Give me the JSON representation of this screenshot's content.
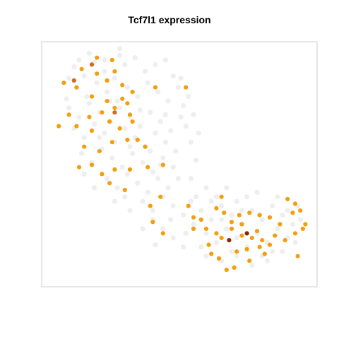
{
  "chart_data": {
    "type": "scatter",
    "title": "Tcf7l1 expression",
    "xlabel": "",
    "ylabel": "",
    "xlim": [
      0,
      100
    ],
    "ylim": [
      0,
      100
    ],
    "grid": false,
    "legend": "none",
    "colors": {
      "background_cells": "#eeeeee",
      "frame": "#cccccc",
      "low": "#f59e0b",
      "medium": "#d2691e",
      "high": "#8b2500"
    },
    "series": [
      {
        "level": "background",
        "points": [
          [
            8,
            93
          ],
          [
            12,
            89
          ],
          [
            16,
            95
          ],
          [
            20,
            91
          ],
          [
            24,
            88
          ],
          [
            28,
            94
          ],
          [
            9,
            84
          ],
          [
            13,
            80
          ],
          [
            17,
            86
          ],
          [
            21,
            82
          ],
          [
            25,
            78
          ],
          [
            29,
            84
          ],
          [
            33,
            80
          ],
          [
            37,
            86
          ],
          [
            41,
            82
          ],
          [
            45,
            78
          ],
          [
            49,
            84
          ],
          [
            53,
            80
          ],
          [
            51,
            76
          ],
          [
            55,
            72
          ],
          [
            6,
            75
          ],
          [
            10,
            71
          ],
          [
            14,
            77
          ],
          [
            18,
            73
          ],
          [
            22,
            69
          ],
          [
            26,
            75
          ],
          [
            30,
            71
          ],
          [
            34,
            67
          ],
          [
            38,
            73
          ],
          [
            42,
            69
          ],
          [
            46,
            65
          ],
          [
            50,
            71
          ],
          [
            52,
            67
          ],
          [
            8,
            66
          ],
          [
            12,
            62
          ],
          [
            16,
            68
          ],
          [
            20,
            64
          ],
          [
            24,
            60
          ],
          [
            28,
            66
          ],
          [
            32,
            62
          ],
          [
            36,
            58
          ],
          [
            40,
            64
          ],
          [
            44,
            60
          ],
          [
            48,
            56
          ],
          [
            11,
            55
          ],
          [
            15,
            51
          ],
          [
            19,
            57
          ],
          [
            23,
            53
          ],
          [
            27,
            49
          ],
          [
            31,
            55
          ],
          [
            35,
            51
          ],
          [
            39,
            47
          ],
          [
            43,
            53
          ],
          [
            47,
            49
          ],
          [
            21,
            44
          ],
          [
            25,
            40
          ],
          [
            29,
            46
          ],
          [
            33,
            42
          ],
          [
            37,
            38
          ],
          [
            41,
            44
          ],
          [
            45,
            40
          ],
          [
            35,
            34
          ],
          [
            39,
            30
          ],
          [
            43,
            36
          ],
          [
            47,
            32
          ],
          [
            51,
            28
          ],
          [
            39,
            26
          ],
          [
            43,
            22
          ],
          [
            47,
            18
          ],
          [
            51,
            14
          ],
          [
            55,
            24
          ],
          [
            35,
            22
          ],
          [
            40,
            15
          ],
          [
            58,
            30
          ],
          [
            62,
            26
          ],
          [
            66,
            32
          ],
          [
            70,
            28
          ],
          [
            74,
            24
          ],
          [
            78,
            30
          ],
          [
            82,
            26
          ],
          [
            86,
            32
          ],
          [
            90,
            28
          ],
          [
            94,
            24
          ],
          [
            60,
            20
          ],
          [
            64,
            16
          ],
          [
            68,
            22
          ],
          [
            72,
            18
          ],
          [
            76,
            14
          ],
          [
            80,
            20
          ],
          [
            84,
            16
          ],
          [
            88,
            22
          ],
          [
            92,
            18
          ],
          [
            56,
            36
          ],
          [
            60,
            40
          ],
          [
            64,
            36
          ],
          [
            68,
            40
          ],
          [
            72,
            34
          ],
          [
            80,
            38
          ],
          [
            88,
            36
          ],
          [
            96,
            32
          ],
          [
            60,
            10
          ],
          [
            66,
            8
          ],
          [
            72,
            10
          ],
          [
            78,
            6
          ],
          [
            84,
            8
          ],
          [
            14,
            99
          ],
          [
            26,
            101
          ],
          [
            32,
            97
          ],
          [
            47,
            89
          ],
          [
            36,
            91
          ],
          [
            54,
            60
          ],
          [
            57,
            64
          ],
          [
            5,
            79
          ],
          [
            18,
            62
          ],
          [
            30,
            58
          ],
          [
            42,
            50
          ],
          [
            49,
            44
          ],
          [
            24,
            34
          ],
          [
            30,
            30
          ],
          [
            54,
            44
          ],
          [
            56,
            52
          ],
          [
            6,
            88
          ],
          [
            40,
            94
          ],
          [
            44,
            96
          ],
          [
            34,
            74
          ],
          [
            22,
            78
          ],
          [
            12,
            46
          ],
          [
            16,
            40
          ],
          [
            28,
            36
          ],
          [
            46,
            26
          ],
          [
            52,
            20
          ],
          [
            58,
            14
          ],
          [
            62,
            34
          ],
          [
            70,
            12
          ],
          [
            76,
            36
          ],
          [
            82,
            10
          ],
          [
            86,
            12
          ],
          [
            92,
            30
          ],
          [
            95,
            16
          ],
          [
            97,
            26
          ],
          [
            54,
            34
          ],
          [
            66,
            26
          ],
          [
            74,
            30
          ],
          [
            90,
            12
          ],
          [
            38,
            56
          ],
          [
            44,
            72
          ],
          [
            50,
            88
          ],
          [
            26,
            98
          ],
          [
            20,
            96
          ],
          [
            10,
            96
          ]
        ]
      },
      {
        "level": "low",
        "points": [
          [
            17,
            97
          ],
          [
            23,
            96
          ],
          [
            11,
            92
          ],
          [
            17,
            90
          ],
          [
            24,
            91
          ],
          [
            27,
            85
          ],
          [
            21,
            87
          ],
          [
            4,
            86
          ],
          [
            9,
            84
          ],
          [
            15,
            80
          ],
          [
            21,
            78
          ],
          [
            27,
            79
          ],
          [
            31,
            82
          ],
          [
            40,
            84
          ],
          [
            52,
            84
          ],
          [
            6,
            72
          ],
          [
            14,
            71
          ],
          [
            19,
            73
          ],
          [
            24,
            75
          ],
          [
            29,
            77
          ],
          [
            30,
            72
          ],
          [
            2,
            67
          ],
          [
            9,
            67
          ],
          [
            15,
            65
          ],
          [
            22,
            69
          ],
          [
            26,
            66
          ],
          [
            31,
            69
          ],
          [
            12,
            58
          ],
          [
            18,
            56
          ],
          [
            23,
            60
          ],
          [
            29,
            61
          ],
          [
            33,
            61
          ],
          [
            36,
            58
          ],
          [
            10,
            49
          ],
          [
            15,
            50
          ],
          [
            19,
            46
          ],
          [
            24,
            48
          ],
          [
            30,
            48
          ],
          [
            37,
            49
          ],
          [
            43,
            50
          ],
          [
            28,
            39
          ],
          [
            22,
            42
          ],
          [
            38,
            32
          ],
          [
            42,
            36
          ],
          [
            43,
            20
          ],
          [
            39,
            25
          ],
          [
            53,
            32
          ],
          [
            55,
            27
          ],
          [
            58,
            26
          ],
          [
            64,
            31
          ],
          [
            66,
            36
          ],
          [
            60,
            22
          ],
          [
            55,
            22
          ],
          [
            61,
            15
          ],
          [
            62,
            11
          ],
          [
            65,
            9
          ],
          [
            66,
            18
          ],
          [
            70,
            22
          ],
          [
            74,
            19
          ],
          [
            78,
            18
          ],
          [
            82,
            17
          ],
          [
            72,
            12
          ],
          [
            70,
            25
          ],
          [
            73,
            28
          ],
          [
            77,
            29
          ],
          [
            81,
            28
          ],
          [
            85,
            27
          ],
          [
            89,
            24
          ],
          [
            94,
            29
          ],
          [
            97,
            30
          ],
          [
            87,
            19
          ],
          [
            91,
            17
          ],
          [
            95,
            20
          ],
          [
            98,
            22
          ],
          [
            83,
            11
          ],
          [
            77,
            8
          ],
          [
            68,
            4
          ],
          [
            71,
            5
          ],
          [
            76,
            13
          ],
          [
            81,
            14
          ],
          [
            85,
            15
          ],
          [
            92,
            35
          ],
          [
            95,
            33
          ],
          [
            99,
            24
          ],
          [
            96,
            10
          ],
          [
            74,
            24
          ],
          [
            67,
            29
          ],
          [
            64,
            20
          ],
          [
            80,
            21
          ]
        ]
      },
      {
        "level": "medium",
        "points": [
          [
            8,
            87
          ],
          [
            15,
            94
          ],
          [
            24,
            73
          ]
        ]
      },
      {
        "level": "high",
        "points": [
          [
            69,
            17
          ],
          [
            76,
            20
          ]
        ]
      }
    ]
  }
}
